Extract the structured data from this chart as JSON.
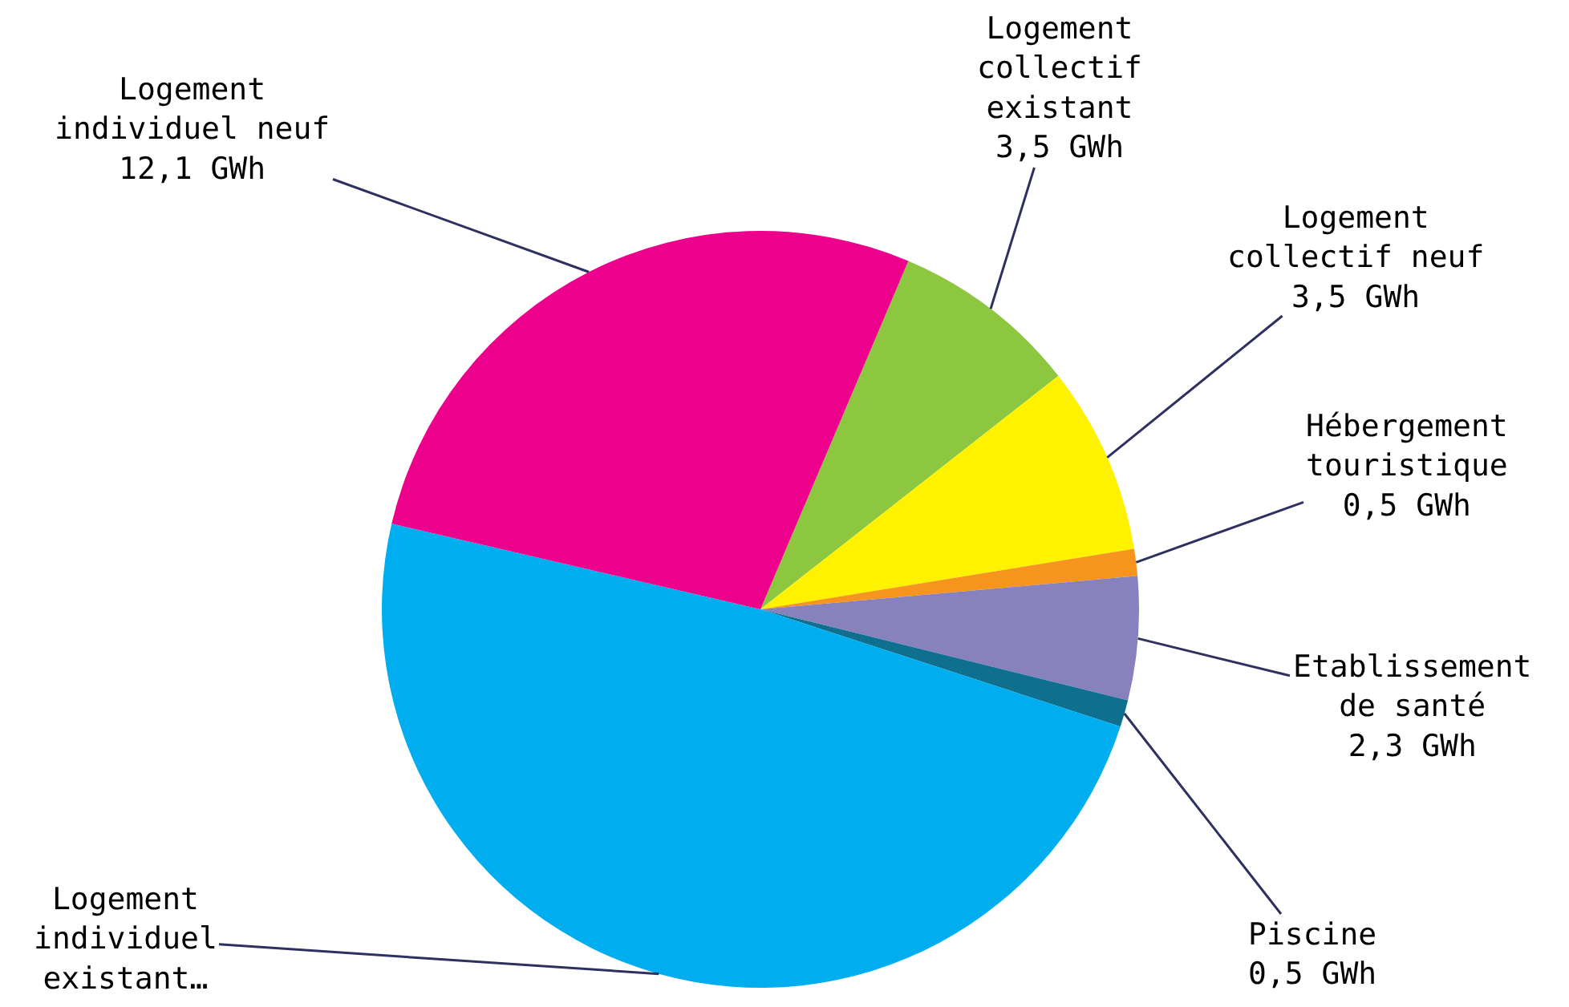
{
  "chart_data": {
    "type": "pie",
    "categories": [
      "Logement collectif existant",
      "Logement collectif neuf",
      "Hébergement touristique",
      "Etablissement de santé",
      "Piscine",
      "Logement individuel existant…",
      "Logement individuel neuf"
    ],
    "values": [
      3.5,
      3.5,
      0.5,
      2.3,
      0.5,
      21.2,
      12.1
    ],
    "value_labels": [
      "3,5 GWh",
      "3,5 GWh",
      "0,5 GWh",
      "2,3 GWh",
      "0,5 GWh",
      null,
      "12,1 GWh"
    ],
    "colors": [
      "#8dc63f",
      "#fff200",
      "#f7941d",
      "#8781bd",
      "#0f6f8f",
      "#00aeef",
      "#ec008c"
    ]
  }
}
